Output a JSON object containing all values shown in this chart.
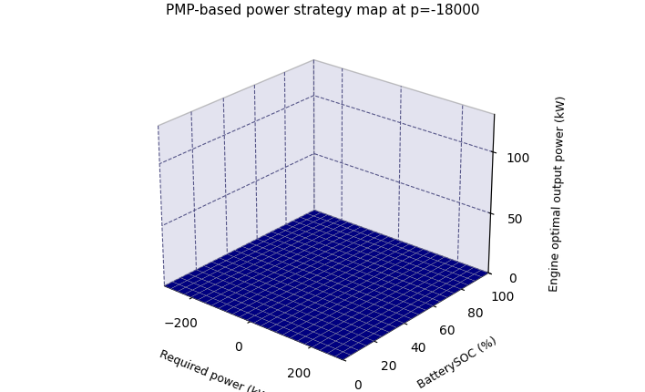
{
  "title": "PMP-based power strategy map at p=-18000",
  "xlabel": "Required power (kW)",
  "ylabel": "BatterySOC (%)",
  "zlabel": "Engine optimal output power (kW)",
  "req_power_min": -300,
  "req_power_max": 300,
  "soc_min": 0,
  "soc_max": 100,
  "engine_power_max": 120,
  "zlim_max": 130,
  "xticks": [
    -200,
    0,
    200
  ],
  "yticks": [
    0,
    20,
    40,
    60,
    80,
    100
  ],
  "zticks": [
    0,
    50,
    100
  ],
  "background_color": "#ffffff",
  "colormap": "jet",
  "n_req": 51,
  "n_soc": 21,
  "elev": 25,
  "azim": -50,
  "title_fontsize": 11,
  "label_fontsize": 9,
  "a1": 0.05,
  "a2": 0.0005,
  "lam": -18000,
  "Q_bat": 7020
}
